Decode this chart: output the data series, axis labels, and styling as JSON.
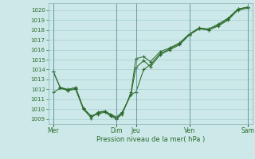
{
  "xlabel": "Pression niveau de la mer( hPa )",
  "bg_color": "#cce8e8",
  "grid_color": "#b0d8d8",
  "line_color": "#2d6b2d",
  "ylim": [
    1008.5,
    1020.7
  ],
  "yticks": [
    1009,
    1010,
    1011,
    1012,
    1013,
    1014,
    1015,
    1016,
    1017,
    1018,
    1019,
    1020
  ],
  "xtick_labels": [
    "Mer",
    "Dim",
    "Jeu",
    "Ven",
    "Sam"
  ],
  "xtick_positions": [
    0.5,
    7.0,
    9.0,
    14.5,
    20.5
  ],
  "vline_positions": [
    0.5,
    7.0,
    9.0,
    14.5,
    20.5
  ],
  "series_x": [
    0.5,
    1.2,
    2.0,
    2.8,
    3.6,
    4.4,
    5.1,
    5.8,
    6.4,
    7.0,
    7.6,
    8.5,
    9.0,
    9.8,
    10.5,
    11.5,
    12.5,
    13.5,
    14.5,
    15.5,
    16.5,
    17.5,
    18.5,
    19.5,
    20.5
  ],
  "series": [
    [
      1013.8,
      1012.2,
      1011.9,
      1012.1,
      1010.0,
      1009.3,
      1009.6,
      1009.8,
      1009.4,
      1009.1,
      1009.6,
      1011.5,
      1014.2,
      1014.9,
      1014.3,
      1015.5,
      1016.0,
      1016.5,
      1017.5,
      1018.1,
      1018.0,
      1018.4,
      1019.0,
      1020.0,
      1020.2
    ],
    [
      1011.7,
      1012.1,
      1011.9,
      1012.0,
      1010.0,
      1009.1,
      1009.7,
      1009.8,
      1009.5,
      1009.2,
      1009.7,
      1011.5,
      1011.7,
      1014.0,
      1014.5,
      1015.6,
      1016.1,
      1016.6,
      1017.5,
      1018.2,
      1018.0,
      1018.5,
      1019.1,
      1020.1,
      1020.3
    ],
    [
      1013.8,
      1012.2,
      1012.0,
      1012.2,
      1010.1,
      1009.3,
      1009.5,
      1009.7,
      1009.3,
      1009.0,
      1009.5,
      1011.7,
      1015.1,
      1015.3,
      1014.8,
      1015.8,
      1016.2,
      1016.7,
      1017.6,
      1018.2,
      1018.1,
      1018.6,
      1019.2,
      1020.1,
      1020.3
    ]
  ],
  "xlim": [
    0.0,
    21.0
  ]
}
